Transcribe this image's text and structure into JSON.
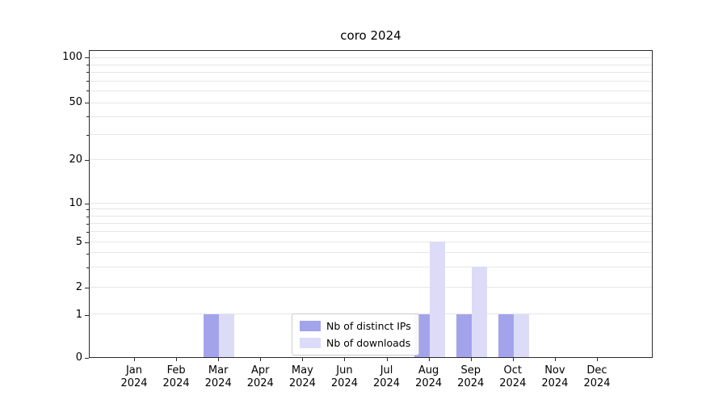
{
  "chart_data": {
    "type": "bar",
    "title": "coro 2024",
    "categories": [
      {
        "month": "Jan",
        "year": "2024"
      },
      {
        "month": "Feb",
        "year": "2024"
      },
      {
        "month": "Mar",
        "year": "2024"
      },
      {
        "month": "Apr",
        "year": "2024"
      },
      {
        "month": "May",
        "year": "2024"
      },
      {
        "month": "Jun",
        "year": "2024"
      },
      {
        "month": "Jul",
        "year": "2024"
      },
      {
        "month": "Aug",
        "year": "2024"
      },
      {
        "month": "Sep",
        "year": "2024"
      },
      {
        "month": "Oct",
        "year": "2024"
      },
      {
        "month": "Nov",
        "year": "2024"
      },
      {
        "month": "Dec",
        "year": "2024"
      }
    ],
    "series": [
      {
        "name": "Nb of distinct IPs",
        "color": "#a3a3ec",
        "values": [
          0,
          0,
          1,
          0,
          0,
          0,
          0,
          1,
          1,
          1,
          0,
          0
        ]
      },
      {
        "name": "Nb of downloads",
        "color": "#dcdcf8",
        "values": [
          0,
          0,
          1,
          0,
          0,
          0,
          0,
          5,
          3,
          1,
          0,
          0
        ]
      }
    ],
    "yscale": "log-like (0 at baseline)",
    "yticks": [
      0,
      1,
      2,
      5,
      10,
      20,
      50,
      100
    ],
    "ylim": [
      0,
      110
    ],
    "xlabel": "",
    "ylabel": "",
    "grid": "horizontal-minor-and-major",
    "legend": {
      "position": "lower-center",
      "items": [
        "Nb of distinct IPs",
        "Nb of downloads"
      ]
    }
  }
}
